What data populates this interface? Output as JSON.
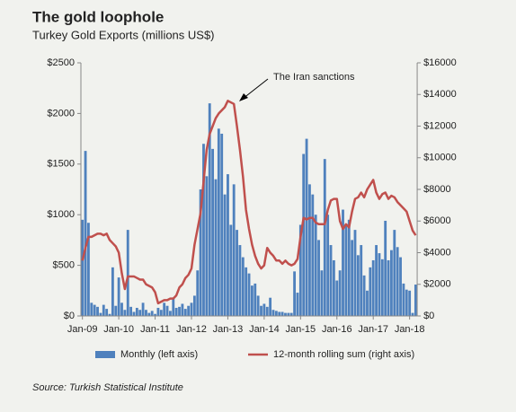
{
  "chart_data": {
    "type": "bar_line",
    "title": "The gold loophole",
    "subtitle": "Turkey Gold Exports (millions US$)",
    "source": "Source: Turkish Statistical Institute",
    "annotation": "The Iran sanctions",
    "legend": "bottom",
    "categories": [
      "Jan-09",
      null,
      null,
      null,
      null,
      null,
      null,
      null,
      null,
      null,
      null,
      null,
      "Jan-10",
      null,
      null,
      null,
      null,
      null,
      null,
      null,
      null,
      null,
      null,
      null,
      "Jan-11",
      null,
      null,
      null,
      null,
      null,
      null,
      null,
      null,
      null,
      null,
      null,
      "Jan-12",
      null,
      null,
      null,
      null,
      null,
      null,
      null,
      null,
      null,
      null,
      null,
      "Jan-13",
      null,
      null,
      null,
      null,
      null,
      null,
      null,
      null,
      null,
      null,
      null,
      "Jan-14",
      null,
      null,
      null,
      null,
      null,
      null,
      null,
      null,
      null,
      null,
      null,
      "Jan-15",
      null,
      null,
      null,
      null,
      null,
      null,
      null,
      null,
      null,
      null,
      null,
      "Jan-16",
      null,
      null,
      null,
      null,
      null,
      null,
      null,
      null,
      null,
      null,
      null,
      "Jan-17",
      null,
      null,
      null,
      null,
      null,
      null,
      null,
      null,
      null,
      null,
      null,
      "Jan-18",
      null,
      null
    ],
    "ylim": [
      0,
      2500
    ],
    "yticks": [
      {
        "value": 0,
        "label": "$0"
      },
      {
        "value": 500,
        "label": "$500"
      },
      {
        "value": 1000,
        "label": "$1000"
      },
      {
        "value": 1500,
        "label": "$1500"
      },
      {
        "value": 2000,
        "label": "$2000"
      },
      {
        "value": 2500,
        "label": "$2500"
      }
    ],
    "y2lim": [
      0,
      16000
    ],
    "y2ticks": [
      {
        "value": 0,
        "label": "$0"
      },
      {
        "value": 2000,
        "label": "$2000"
      },
      {
        "value": 4000,
        "label": "$4000"
      },
      {
        "value": 6000,
        "label": "$6000"
      },
      {
        "value": 8000,
        "label": "$8000"
      },
      {
        "value": 10000,
        "label": "$10000"
      },
      {
        "value": 12000,
        "label": "$12000"
      },
      {
        "value": 14000,
        "label": "$14000"
      },
      {
        "value": 16000,
        "label": "$16000"
      }
    ],
    "series": [
      {
        "name": "Monthly (left axis)",
        "type": "bar",
        "color": "#4f81bd",
        "values": [
          950,
          1630,
          920,
          130,
          110,
          90,
          30,
          110,
          70,
          20,
          480,
          100,
          380,
          130,
          60,
          850,
          90,
          40,
          80,
          60,
          130,
          60,
          30,
          50,
          20,
          80,
          60,
          130,
          100,
          50,
          170,
          80,
          90,
          120,
          70,
          100,
          130,
          200,
          450,
          1250,
          1700,
          1380,
          2100,
          1650,
          1350,
          1850,
          1800,
          1200,
          1400,
          900,
          1300,
          850,
          700,
          580,
          480,
          420,
          300,
          320,
          200,
          100,
          120,
          90,
          180,
          60,
          50,
          40,
          40,
          30,
          30,
          30,
          440,
          230,
          900,
          1600,
          1750,
          1300,
          1200,
          1000,
          750,
          450,
          1550,
          1000,
          700,
          550,
          350,
          450,
          1050,
          900,
          950,
          750,
          850,
          600,
          700,
          400,
          250,
          480,
          550,
          700,
          620,
          560,
          940,
          550,
          650,
          850,
          680,
          580,
          320,
          260,
          250,
          30,
          310
        ]
      },
      {
        "name": "12-month rolling sum (right axis)",
        "type": "line",
        "axis": "y2",
        "color": "#c0504d",
        "values": [
          3500,
          4300,
          5000,
          5000,
          5100,
          5200,
          5200,
          5100,
          5200,
          4800,
          4600,
          4400,
          4000,
          2700,
          1700,
          2500,
          2500,
          2500,
          2400,
          2300,
          2300,
          2000,
          1900,
          1800,
          1500,
          800,
          900,
          1000,
          1000,
          1100,
          1100,
          1300,
          1800,
          2000,
          2400,
          2600,
          3000,
          4500,
          5500,
          6500,
          8500,
          10500,
          11500,
          12000,
          12500,
          12800,
          13000,
          13200,
          13600,
          13500,
          13400,
          12000,
          10500,
          8800,
          6700,
          5500,
          4500,
          3800,
          3300,
          3000,
          3200,
          4300,
          4000,
          3800,
          3500,
          3500,
          3300,
          3500,
          3300,
          3200,
          3300,
          3600,
          5000,
          6200,
          6100,
          6200,
          6200,
          5900,
          5800,
          5800,
          5800,
          6700,
          7300,
          7400,
          7400,
          6000,
          5500,
          5800,
          5600,
          6600,
          7400,
          7500,
          7800,
          7500,
          8000,
          8300,
          8600,
          7800,
          7400,
          7700,
          7800,
          7400,
          7600,
          7500,
          7200,
          7000,
          6800,
          6600,
          6000,
          5400,
          5100
        ]
      }
    ]
  }
}
